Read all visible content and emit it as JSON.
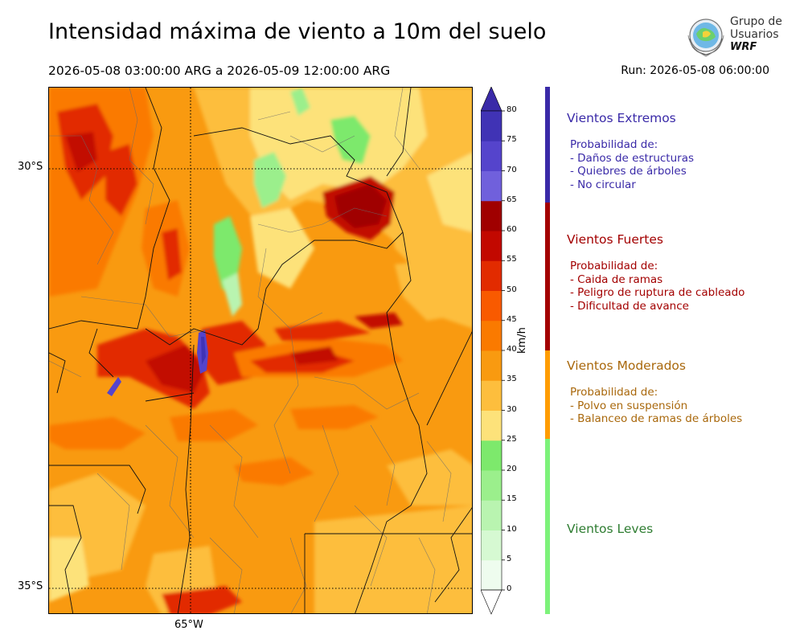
{
  "header": {
    "title": "Intensidad máxima de viento a 10m del suelo",
    "period": "2026-05-08 03:00:00 ARG  a  2026-05-09 12:00:00 ARG",
    "run": "Run: 2026-05-08 06:00:00"
  },
  "logo": {
    "line1": "Grupo de",
    "line2": "Usuarios",
    "line3": "WRF"
  },
  "map": {
    "lat_labels": [
      "30°S",
      "35°S"
    ],
    "lon_labels": [
      "65°W"
    ],
    "variable": "wind speed max 10m",
    "dominant_color": "#f99a10"
  },
  "colorbar": {
    "unit": "km/h",
    "ticks": [
      "0",
      "5",
      "10",
      "15",
      "20",
      "25",
      "30",
      "35",
      "40",
      "45",
      "50",
      "55",
      "60",
      "65",
      "70",
      "75",
      "80"
    ],
    "colors": [
      "#eefcee",
      "#d6f9d2",
      "#b9f4b0",
      "#9bef8c",
      "#7de96c",
      "#fde27a",
      "#fdbe3d",
      "#f99a10",
      "#fa7a00",
      "#f95a00",
      "#e22b00",
      "#c20800",
      "#a00000",
      "#7060dc",
      "#5544cc",
      "#4033b5"
    ],
    "over_color": "#3a2aa8",
    "under_color": "#ffffff"
  },
  "categories": [
    {
      "name": "Vientos Extremos",
      "color": "#3a2aa8",
      "lines": [
        "Probabilidad de:",
        "- Daños de estructuras",
        "- Quiebres de árboles",
        "- No circular"
      ]
    },
    {
      "name": "Vientos Fuertes",
      "color": "#a30000",
      "lines": [
        "Probabilidad de:",
        "- Caida de ramas",
        "- Peligro de ruptura de cableado",
        "- Dificultad de avance"
      ]
    },
    {
      "name": "Vientos Moderados",
      "color": "#a9680c",
      "lines": [
        "Probabilidad de:",
        "- Polvo en suspensión",
        "- Balanceo de ramas de árboles"
      ]
    },
    {
      "name": "Vientos Leves",
      "color": "#2f7d32",
      "lines": []
    }
  ],
  "sidebar_colors": [
    "#3a2aa8",
    "#a30000",
    "#ff9c00",
    "#7df27a"
  ]
}
